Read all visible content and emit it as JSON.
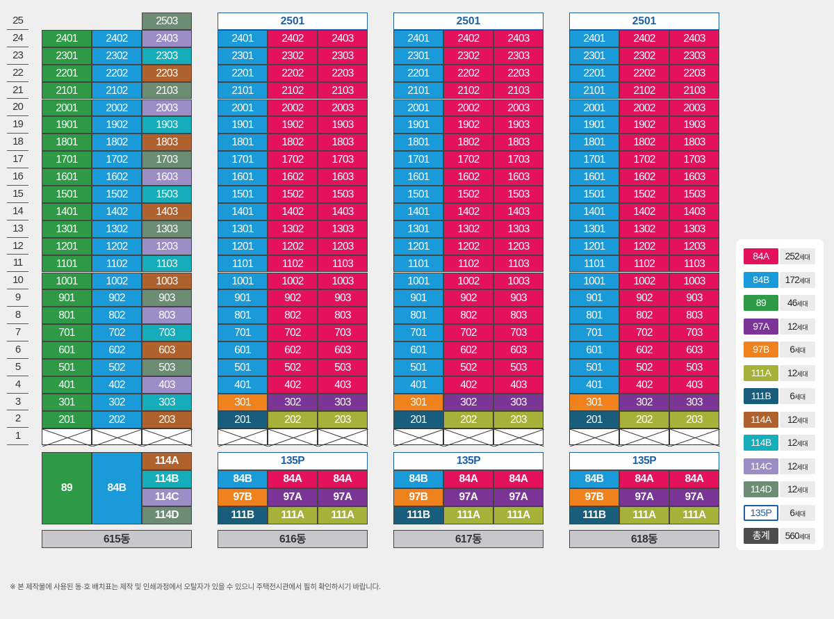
{
  "floors": [
    "25",
    "24",
    "23",
    "22",
    "21",
    "20",
    "19",
    "18",
    "17",
    "16",
    "15",
    "14",
    "13",
    "12",
    "11",
    "10",
    "9",
    "8",
    "7",
    "6",
    "5",
    "4",
    "3",
    "2",
    "1"
  ],
  "colors": {
    "84A": "#e4125c",
    "84B": "#1a9ad9",
    "89": "#2e9a46",
    "97A": "#7b3596",
    "97B": "#f0821e",
    "111A": "#a7b13a",
    "111B": "#185d7c",
    "114A": "#b0622e",
    "114B": "#14adb9",
    "114C": "#9c8dc6",
    "114D": "#6c8c74",
    "135P": "#ffffff",
    "total": "#4d4d4d"
  },
  "buildings": [
    {
      "name": "615동",
      "top_label": "2503",
      "columns": [
        {
          "line": "01",
          "type_rows": [
            [
              "89",
              2,
              24
            ]
          ],
          "top_floor": 24
        },
        {
          "line": "02",
          "type_rows": [
            [
              "84B",
              2,
              24
            ]
          ],
          "top_floor": 24
        },
        {
          "line": "03",
          "pattern": [
            "114A",
            "114B",
            "114C",
            "114D"
          ],
          "top_floor": 25
        }
      ],
      "summary": {
        "big": [
          "89",
          "84B"
        ],
        "stack": [
          "114A",
          "114B",
          "114C",
          "114D"
        ]
      }
    },
    {
      "name": "616동",
      "top_label": "2501",
      "summary_title": "135P",
      "summary_rows": [
        [
          "84B",
          "84A",
          "84A"
        ],
        [
          "97B",
          "97A",
          "97A"
        ],
        [
          "111B",
          "111A",
          "111A"
        ]
      ]
    },
    {
      "name": "617동",
      "top_label": "2501",
      "summary_title": "135P",
      "summary_rows": [
        [
          "84B",
          "84A",
          "84A"
        ],
        [
          "97B",
          "97A",
          "97A"
        ],
        [
          "111B",
          "111A",
          "111A"
        ]
      ]
    },
    {
      "name": "618동",
      "top_label": "2501",
      "summary_title": "135P",
      "summary_rows": [
        [
          "84B",
          "84A",
          "84A"
        ],
        [
          "97B",
          "97A",
          "97A"
        ],
        [
          "111B",
          "111A",
          "111A"
        ]
      ]
    }
  ],
  "legend": [
    {
      "type": "84A",
      "count": "252",
      "unit": "세대"
    },
    {
      "type": "84B",
      "count": "172",
      "unit": "세대"
    },
    {
      "type": "89",
      "count": "46",
      "unit": "세대"
    },
    {
      "type": "97A",
      "count": "12",
      "unit": "세대"
    },
    {
      "type": "97B",
      "count": "6",
      "unit": "세대"
    },
    {
      "type": "111A",
      "count": "12",
      "unit": "세대"
    },
    {
      "type": "111B",
      "count": "6",
      "unit": "세대"
    },
    {
      "type": "114A",
      "count": "12",
      "unit": "세대"
    },
    {
      "type": "114B",
      "count": "12",
      "unit": "세대"
    },
    {
      "type": "114C",
      "count": "12",
      "unit": "세대"
    },
    {
      "type": "114D",
      "count": "12",
      "unit": "세대"
    },
    {
      "type": "135P",
      "count": "6",
      "unit": "세대"
    },
    {
      "type": "총계",
      "count": "560",
      "unit": "세대"
    }
  ],
  "footnote": "※ 본 제작물에 사용된 동·호 배치표는 제작 및 인쇄과정에서 오탈자가 있을 수 있으니 주택전시관에서 필히 확인하시기 바랍니다."
}
